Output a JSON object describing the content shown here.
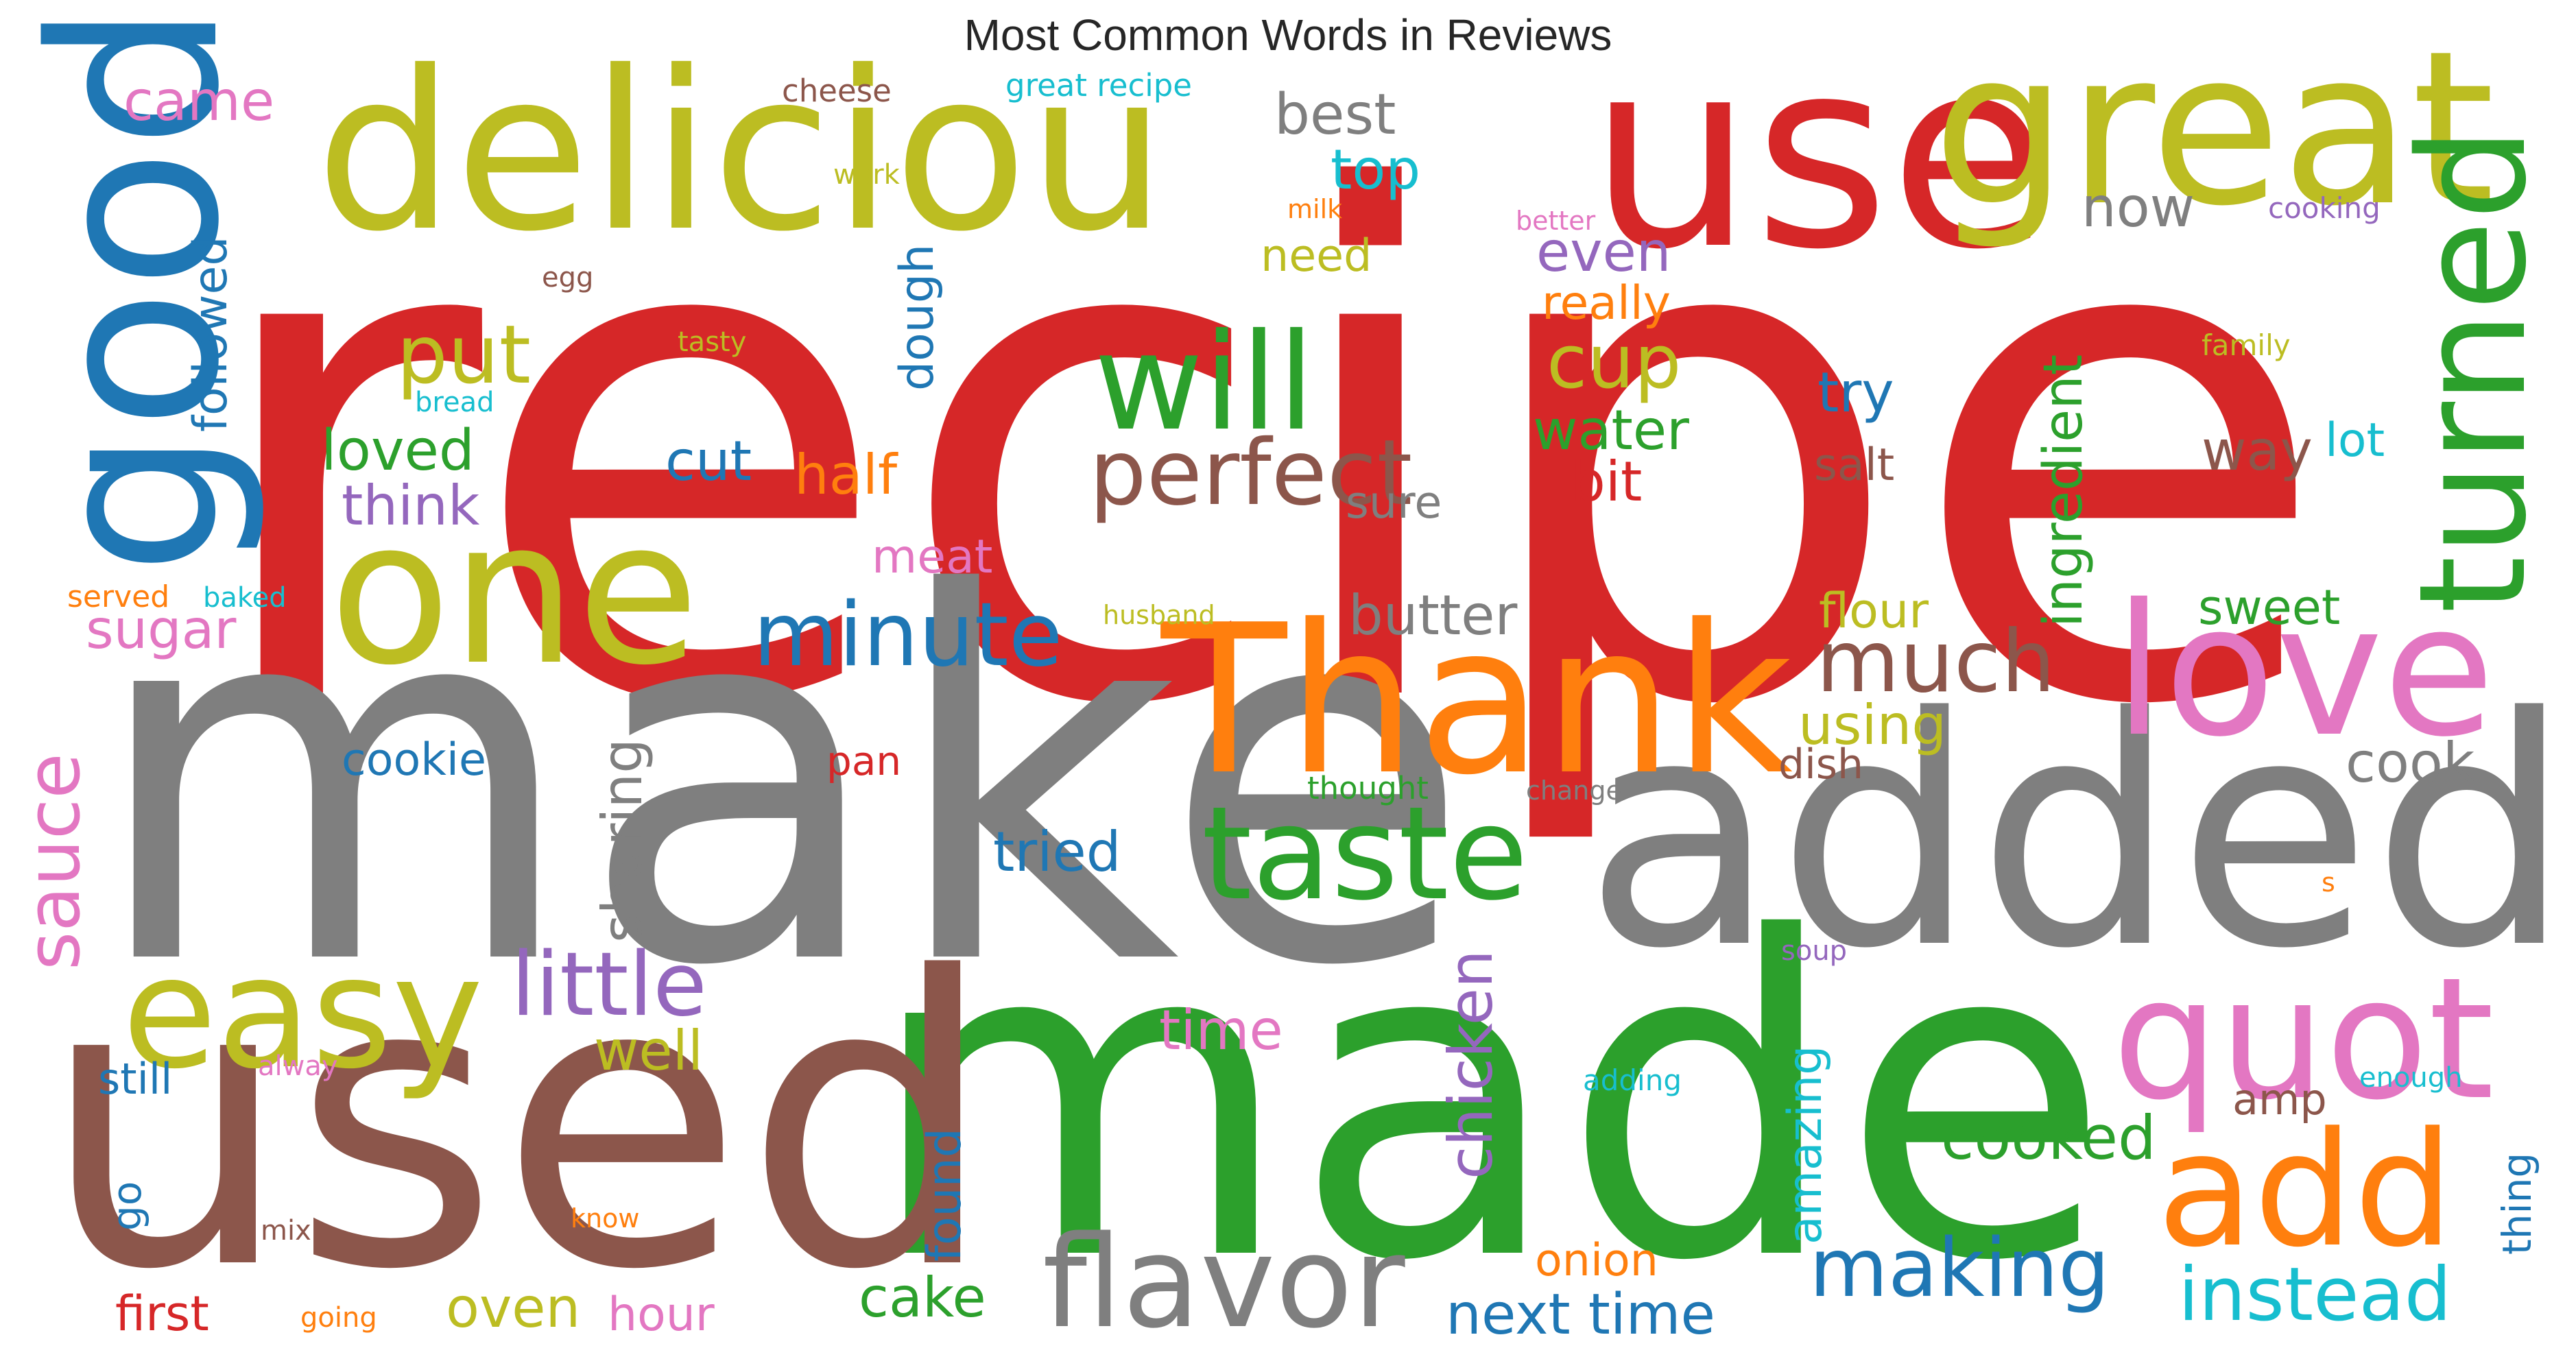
{
  "colors": {
    "red": "#d62728",
    "gray": "#7f7f7f",
    "green": "#2ca02c",
    "olive": "#bcbd22",
    "brown": "#8c564b",
    "blue": "#1f77b4",
    "orange": "#ff7f0e",
    "pink": "#e377c2",
    "purple": "#9467bd",
    "cyan": "#17becf"
  },
  "chart_data": {
    "type": "word_cloud",
    "title": "Most Common Words in Reviews",
    "words": [
      {
        "text": "recipe",
        "color": "red"
      },
      {
        "text": "make",
        "color": "gray"
      },
      {
        "text": "made",
        "color": "green"
      },
      {
        "text": "used",
        "color": "brown"
      },
      {
        "text": "added",
        "color": "gray"
      },
      {
        "text": "use",
        "color": "red"
      },
      {
        "text": "deliciou",
        "color": "olive"
      },
      {
        "text": "great",
        "color": "olive"
      },
      {
        "text": "Thank",
        "color": "orange"
      },
      {
        "text": "good",
        "color": "blue"
      },
      {
        "text": "one",
        "color": "olive"
      },
      {
        "text": "love",
        "color": "pink"
      },
      {
        "text": "quot",
        "color": "pink"
      },
      {
        "text": "add",
        "color": "orange"
      },
      {
        "text": "easy",
        "color": "olive"
      },
      {
        "text": "taste",
        "color": "green"
      },
      {
        "text": "will",
        "color": "green"
      },
      {
        "text": "turned",
        "color": "green"
      },
      {
        "text": "flavor",
        "color": "gray"
      },
      {
        "text": "perfect",
        "color": "brown"
      },
      {
        "text": "minute",
        "color": "blue"
      },
      {
        "text": "little",
        "color": "purple"
      },
      {
        "text": "much",
        "color": "brown"
      },
      {
        "text": "making",
        "color": "blue"
      },
      {
        "text": "instead",
        "color": "cyan"
      },
      {
        "text": "sauce",
        "color": "pink"
      },
      {
        "text": "put",
        "color": "olive"
      },
      {
        "text": "cup",
        "color": "olive"
      },
      {
        "text": "next time",
        "color": "blue"
      },
      {
        "text": "cooked",
        "color": "green"
      },
      {
        "text": "chicken",
        "color": "purple"
      },
      {
        "text": "ingredient",
        "color": "green"
      },
      {
        "text": "sharing",
        "color": "gray"
      },
      {
        "text": "best",
        "color": "gray"
      },
      {
        "text": "loved",
        "color": "green"
      },
      {
        "text": "followed",
        "color": "blue"
      },
      {
        "text": "butter",
        "color": "gray"
      },
      {
        "text": "tried",
        "color": "blue"
      },
      {
        "text": "think",
        "color": "purple"
      },
      {
        "text": "water",
        "color": "green"
      },
      {
        "text": "half",
        "color": "orange"
      },
      {
        "text": "cook",
        "color": "gray"
      },
      {
        "text": "well",
        "color": "olive"
      },
      {
        "text": "cut",
        "color": "blue"
      },
      {
        "text": "even",
        "color": "purple"
      },
      {
        "text": "came",
        "color": "pink"
      },
      {
        "text": "now",
        "color": "gray"
      },
      {
        "text": "sugar",
        "color": "pink"
      },
      {
        "text": "oven",
        "color": "olive"
      },
      {
        "text": "cake",
        "color": "green"
      },
      {
        "text": "try",
        "color": "blue"
      },
      {
        "text": "way",
        "color": "brown"
      },
      {
        "text": "time",
        "color": "pink"
      },
      {
        "text": "amazing",
        "color": "cyan"
      },
      {
        "text": "top",
        "color": "cyan"
      },
      {
        "text": "really",
        "color": "orange"
      },
      {
        "text": "bit",
        "color": "red"
      },
      {
        "text": "using",
        "color": "olive"
      },
      {
        "text": "cookie",
        "color": "blue"
      },
      {
        "text": "dough",
        "color": "blue"
      },
      {
        "text": "found",
        "color": "blue"
      },
      {
        "text": "sweet",
        "color": "green"
      },
      {
        "text": "flour",
        "color": "olive"
      },
      {
        "text": "need",
        "color": "olive"
      },
      {
        "text": "salt",
        "color": "brown"
      },
      {
        "text": "lot",
        "color": "cyan"
      },
      {
        "text": "still",
        "color": "blue"
      },
      {
        "text": "amp",
        "color": "brown"
      },
      {
        "text": "first",
        "color": "red"
      },
      {
        "text": "hour",
        "color": "pink"
      },
      {
        "text": "onion",
        "color": "orange"
      },
      {
        "text": "dish",
        "color": "brown"
      },
      {
        "text": "meat",
        "color": "pink"
      },
      {
        "text": "pan",
        "color": "red"
      },
      {
        "text": "thing",
        "color": "blue"
      },
      {
        "text": "sure",
        "color": "gray"
      },
      {
        "text": "go",
        "color": "blue"
      },
      {
        "text": "cheese",
        "color": "brown"
      },
      {
        "text": "great recipe",
        "color": "cyan"
      },
      {
        "text": "work",
        "color": "olive"
      },
      {
        "text": "milk",
        "color": "orange"
      },
      {
        "text": "better",
        "color": "pink"
      },
      {
        "text": "cooking",
        "color": "purple"
      },
      {
        "text": "egg",
        "color": "brown"
      },
      {
        "text": "tasty",
        "color": "olive"
      },
      {
        "text": "bread",
        "color": "cyan"
      },
      {
        "text": "family",
        "color": "olive"
      },
      {
        "text": "served",
        "color": "orange"
      },
      {
        "text": "baked",
        "color": "cyan"
      },
      {
        "text": "husband",
        "color": "olive"
      },
      {
        "text": "thought",
        "color": "green"
      },
      {
        "text": "change",
        "color": "gray"
      },
      {
        "text": "soup",
        "color": "purple"
      },
      {
        "text": "enough",
        "color": "cyan"
      },
      {
        "text": "adding",
        "color": "cyan"
      },
      {
        "text": "alway",
        "color": "pink"
      },
      {
        "text": "know",
        "color": "orange"
      },
      {
        "text": "mix",
        "color": "brown"
      },
      {
        "text": "going",
        "color": "orange"
      },
      {
        "text": "s",
        "color": "orange"
      }
    ]
  }
}
